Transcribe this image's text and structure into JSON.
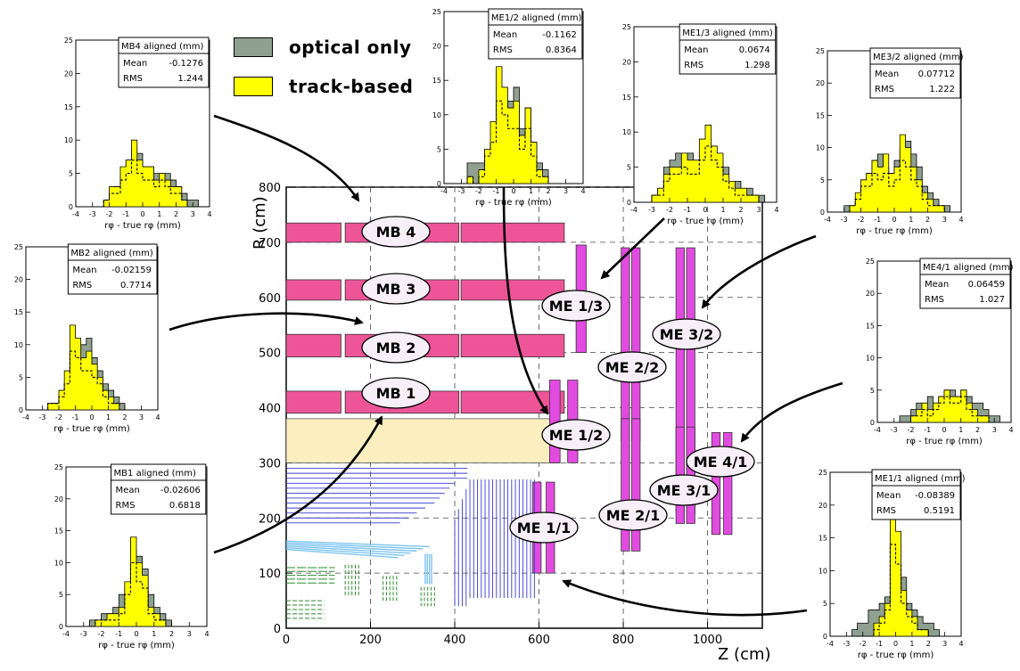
{
  "legend": {
    "optical_label": "optical only",
    "track_label": "track-based",
    "optical_color": "#90a090",
    "track_color": "#ffff00"
  },
  "main_plot": {
    "xlabel": "Z (cm)",
    "ylabel": "R (cm)",
    "x_ticks": [
      "0",
      "200",
      "400",
      "600",
      "800",
      "1000"
    ],
    "y_ticks": [
      "0",
      "100",
      "200",
      "300",
      "400",
      "500",
      "600",
      "700",
      "800"
    ],
    "xlim": [
      0,
      1130
    ],
    "ylim": [
      0,
      800
    ],
    "barrel_color": "#ee5599",
    "endcap_color": "#e24be0",
    "calorimeter_color": "#fbeebf",
    "tracker_outer_color": "#3a3ad0",
    "tracker_pixel_color": "#7cc4ee",
    "tracker_inner_color": "#2e8b2e",
    "chamber_labels": [
      "MB 4",
      "MB 3",
      "MB 2",
      "MB 1",
      "ME 1/3",
      "ME 2/2",
      "ME 3/2",
      "ME 1/2",
      "ME 4/1",
      "ME 3/1",
      "ME 2/1",
      "ME 1/1"
    ]
  },
  "histograms": [
    {
      "id": "mb4",
      "title": "MB4 aligned (mm)",
      "mean": "-0.1276",
      "rms": "1.244",
      "y_ticks": [
        "0",
        "5",
        "10",
        "15",
        "20",
        "25"
      ],
      "ymax": 25,
      "track": [
        0,
        0,
        0,
        0,
        0,
        1,
        3,
        3,
        6,
        7,
        10,
        7,
        6,
        6,
        4,
        5,
        4,
        3,
        3,
        1,
        0,
        0,
        0,
        0
      ],
      "optical": [
        0,
        0,
        0,
        0,
        0,
        1,
        2,
        3,
        5,
        7,
        9,
        8,
        6,
        6,
        5,
        5,
        5,
        4,
        3,
        2,
        1,
        1,
        0,
        0
      ]
    },
    {
      "id": "me12",
      "title": "ME1/2 aligned (mm)",
      "mean": "-0.1162",
      "rms": "0.8364",
      "y_ticks": [
        "0",
        "5",
        "10",
        "15",
        "20",
        "25"
      ],
      "ymax": 25,
      "track": [
        0,
        0,
        0,
        0,
        1,
        0,
        2,
        5,
        9,
        17,
        14,
        11,
        12,
        7,
        11,
        6,
        2,
        1,
        0,
        0,
        0,
        0,
        0,
        0
      ],
      "optical": [
        0,
        0,
        0,
        0,
        3,
        3,
        3,
        5,
        6,
        9,
        10,
        12,
        14,
        8,
        11,
        6,
        3,
        2,
        0,
        0,
        0,
        0,
        0,
        0
      ]
    },
    {
      "id": "me13",
      "title": "ME1/3 aligned (mm)",
      "mean": "0.0674",
      "rms": "1.298",
      "y_ticks": [
        "0",
        "5",
        "10",
        "15",
        "20",
        "25"
      ],
      "ymax": 25,
      "track": [
        0,
        0,
        0,
        1,
        2,
        4,
        5,
        5,
        7,
        6,
        6,
        9,
        11,
        8,
        7,
        4,
        3,
        2,
        2,
        1,
        1,
        0,
        0,
        0
      ],
      "optical": [
        0,
        0,
        0,
        1,
        2,
        5,
        6,
        7,
        6,
        7,
        6,
        7,
        9,
        7,
        6,
        5,
        3,
        3,
        2,
        2,
        1,
        1,
        0,
        0
      ]
    },
    {
      "id": "me32",
      "title": "ME3/2 aligned (mm)",
      "mean": "0.07712",
      "rms": "1.222",
      "y_ticks": [
        "0",
        "5",
        "10",
        "15",
        "20",
        "25"
      ],
      "ymax": 25,
      "track": [
        0,
        0,
        0,
        0,
        1,
        3,
        5,
        6,
        8,
        7,
        9,
        6,
        7,
        12,
        10,
        7,
        5,
        3,
        2,
        1,
        1,
        0,
        0,
        0
      ],
      "optical": [
        0,
        0,
        0,
        1,
        1,
        2,
        4,
        6,
        8,
        9,
        7,
        6,
        8,
        10,
        11,
        9,
        7,
        4,
        3,
        2,
        1,
        1,
        0,
        0
      ]
    },
    {
      "id": "mb2",
      "title": "MB2 aligned (mm)",
      "mean": "-0.02159",
      "rms": "0.7714",
      "y_ticks": [
        "0",
        "5",
        "10",
        "15",
        "20",
        "25"
      ],
      "ymax": 25,
      "track": [
        0,
        0,
        0,
        0,
        1,
        1,
        3,
        6,
        13,
        11,
        8,
        9,
        7,
        5,
        3,
        2,
        1,
        0,
        0,
        0,
        0,
        0,
        0,
        0
      ],
      "optical": [
        0,
        0,
        0,
        0,
        0,
        1,
        2,
        4,
        8,
        9,
        10,
        11,
        8,
        6,
        4,
        3,
        2,
        1,
        0,
        0,
        0,
        0,
        0,
        0
      ]
    },
    {
      "id": "me41",
      "title": "ME4/1 aligned (mm)",
      "mean": "0.06459",
      "rms": "1.027",
      "y_ticks": [
        "0",
        "5",
        "10",
        "15",
        "20",
        "25"
      ],
      "ymax": 25,
      "track": [
        0,
        0,
        0,
        0,
        0,
        0,
        1,
        2,
        3,
        2,
        3,
        4,
        5,
        4,
        4,
        5,
        3,
        2,
        1,
        1,
        0,
        0,
        0,
        0
      ],
      "optical": [
        0,
        0,
        0,
        0,
        1,
        1,
        2,
        3,
        3,
        4,
        3,
        4,
        5,
        5,
        4,
        5,
        4,
        3,
        3,
        2,
        1,
        1,
        0,
        0
      ]
    },
    {
      "id": "mb1",
      "title": "MB1 aligned (mm)",
      "mean": "-0.02606",
      "rms": "0.6818",
      "y_ticks": [
        "0",
        "5",
        "10",
        "15",
        "20",
        "25"
      ],
      "ymax": 25,
      "track": [
        0,
        0,
        0,
        0,
        0,
        1,
        1,
        2,
        2,
        3,
        7,
        14,
        10,
        8,
        3,
        2,
        1,
        0,
        0,
        0,
        0,
        0,
        0,
        0
      ],
      "optical": [
        0,
        0,
        0,
        0,
        1,
        1,
        2,
        2,
        3,
        5,
        6,
        12,
        11,
        9,
        5,
        3,
        2,
        1,
        0,
        0,
        0,
        0,
        0,
        0
      ]
    },
    {
      "id": "me11",
      "title": "ME1/1 aligned (mm)",
      "mean": "-0.08389",
      "rms": "0.5191",
      "y_ticks": [
        "0",
        "5",
        "10",
        "15",
        "20",
        "25"
      ],
      "ymax": 25,
      "track": [
        0,
        0,
        0,
        0,
        0,
        0,
        0,
        0,
        2,
        3,
        5,
        20,
        16,
        7,
        4,
        3,
        1,
        1,
        0,
        0,
        0,
        0,
        0,
        0
      ],
      "optical": [
        0,
        0,
        0,
        0,
        1,
        2,
        2,
        4,
        4,
        5,
        6,
        16,
        14,
        9,
        5,
        4,
        3,
        2,
        2,
        1,
        0,
        0,
        0,
        0
      ]
    }
  ],
  "hist_common": {
    "xlabel": "rφ - true rφ (mm)",
    "x_ticks": [
      "-4",
      "-3",
      "-2",
      "-1",
      "0",
      "1",
      "2",
      "3",
      "4"
    ],
    "mean_label": "Mean",
    "rms_label": "RMS"
  }
}
